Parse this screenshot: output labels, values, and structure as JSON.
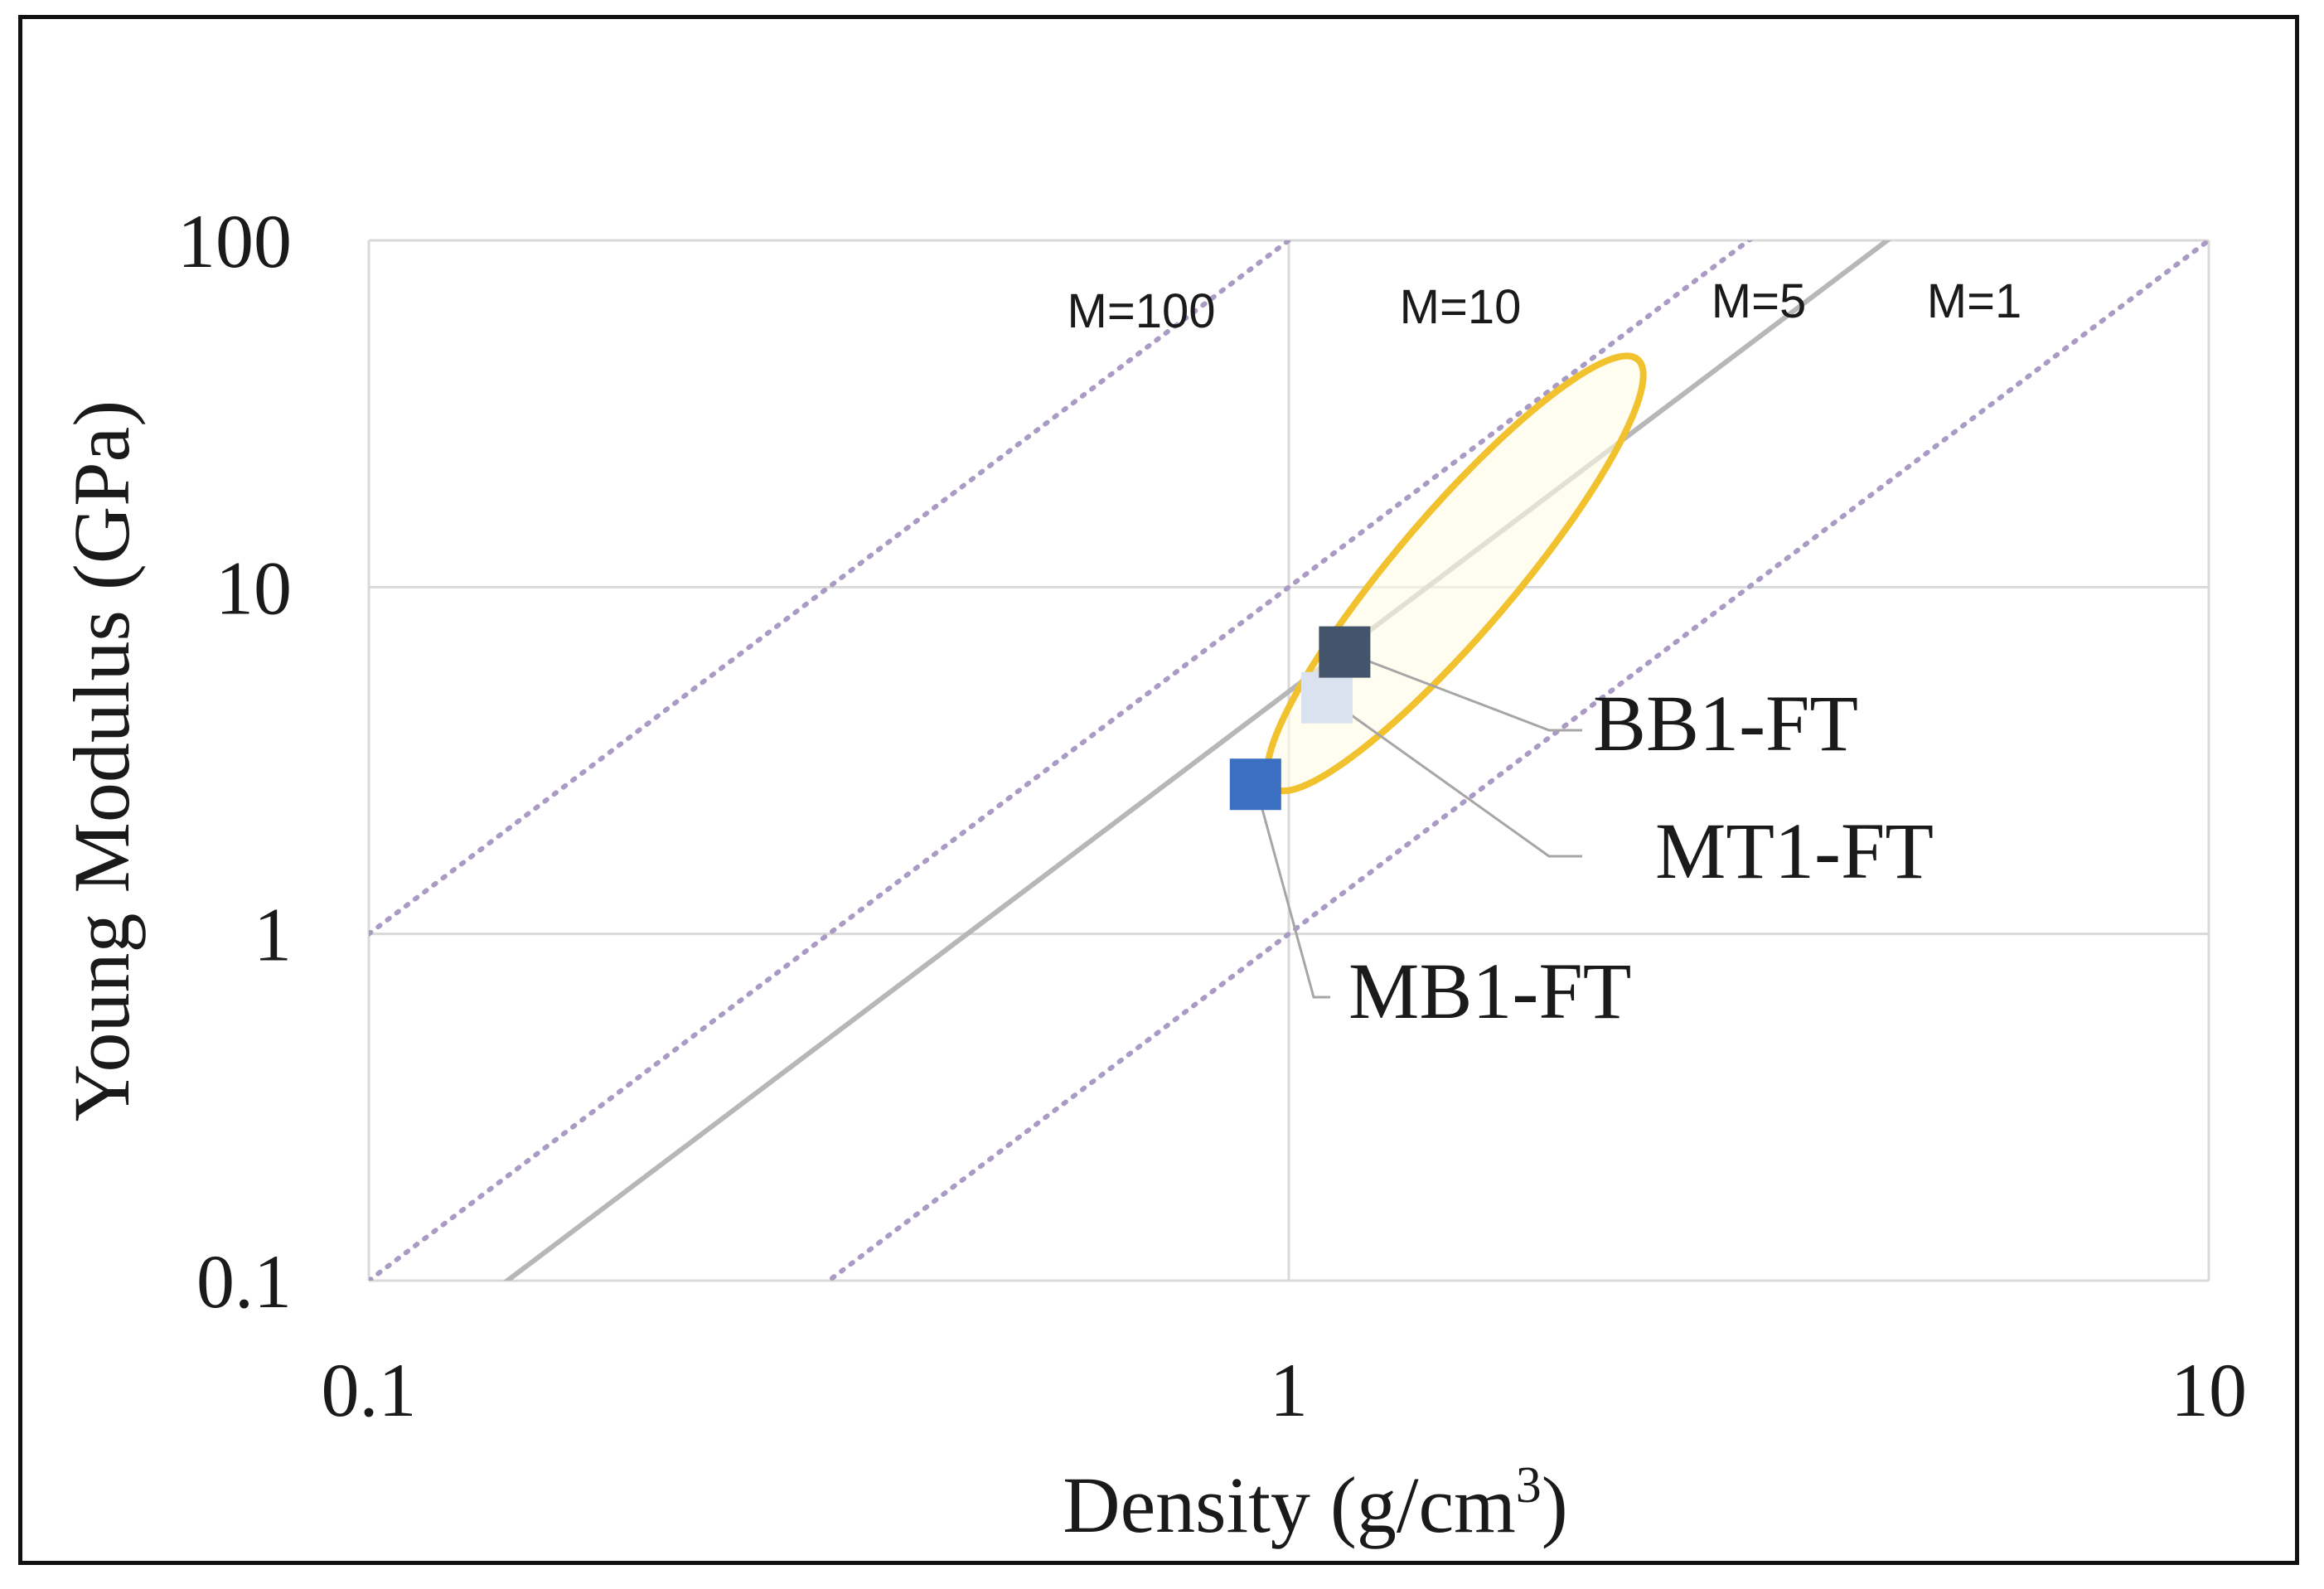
{
  "chart_data": {
    "type": "scatter",
    "title": "",
    "xlabel": "Density (g/cm",
    "xlabel_sup": "3",
    "xlabel_close": ")",
    "ylabel": "Young Modulus (GPa)",
    "xscale": "log",
    "yscale": "log",
    "xlim": [
      0.1,
      10
    ],
    "ylim": [
      0.1,
      100
    ],
    "x_ticks": [
      0.1,
      1,
      10
    ],
    "x_tick_labels": [
      "0.1",
      "1",
      "10"
    ],
    "y_ticks": [
      0.1,
      1,
      10,
      100
    ],
    "y_tick_labels": [
      "0.1",
      "1",
      "10",
      "100"
    ],
    "grid": true,
    "lines": [
      {
        "name": "M=100",
        "label": "M=100",
        "k": 100,
        "style": "dotted",
        "color": "#a99bc4"
      },
      {
        "name": "M=10",
        "label": "M=10",
        "k": 10,
        "style": "dotted",
        "color": "#a99bc4"
      },
      {
        "name": "M=5",
        "label": "M=5",
        "k": 5,
        "style": "solid",
        "color": "#b7b7b7"
      },
      {
        "name": "M=1",
        "label": "M=1",
        "k": 1,
        "style": "dotted",
        "color": "#a99bc4"
      }
    ],
    "series": [
      {
        "name": "BB1-FT",
        "label": "BB1-FT",
        "x": 1.15,
        "y": 6.5,
        "color": "#44546a"
      },
      {
        "name": "MT1-FT",
        "label": "MT1-FT",
        "x": 1.1,
        "y": 4.8,
        "color": "#d9e2ee"
      },
      {
        "name": "MB1-FT",
        "label": "MB1-FT",
        "x": 0.92,
        "y": 2.7,
        "color": "#3a6fc1"
      }
    ],
    "highlight_region": {
      "shape": "ellipse",
      "color": "#f2c12e",
      "fill": "#fffbe6",
      "from": {
        "x": 1.0,
        "y": 3.0
      },
      "to": {
        "x": 2.3,
        "y": 40
      }
    }
  }
}
